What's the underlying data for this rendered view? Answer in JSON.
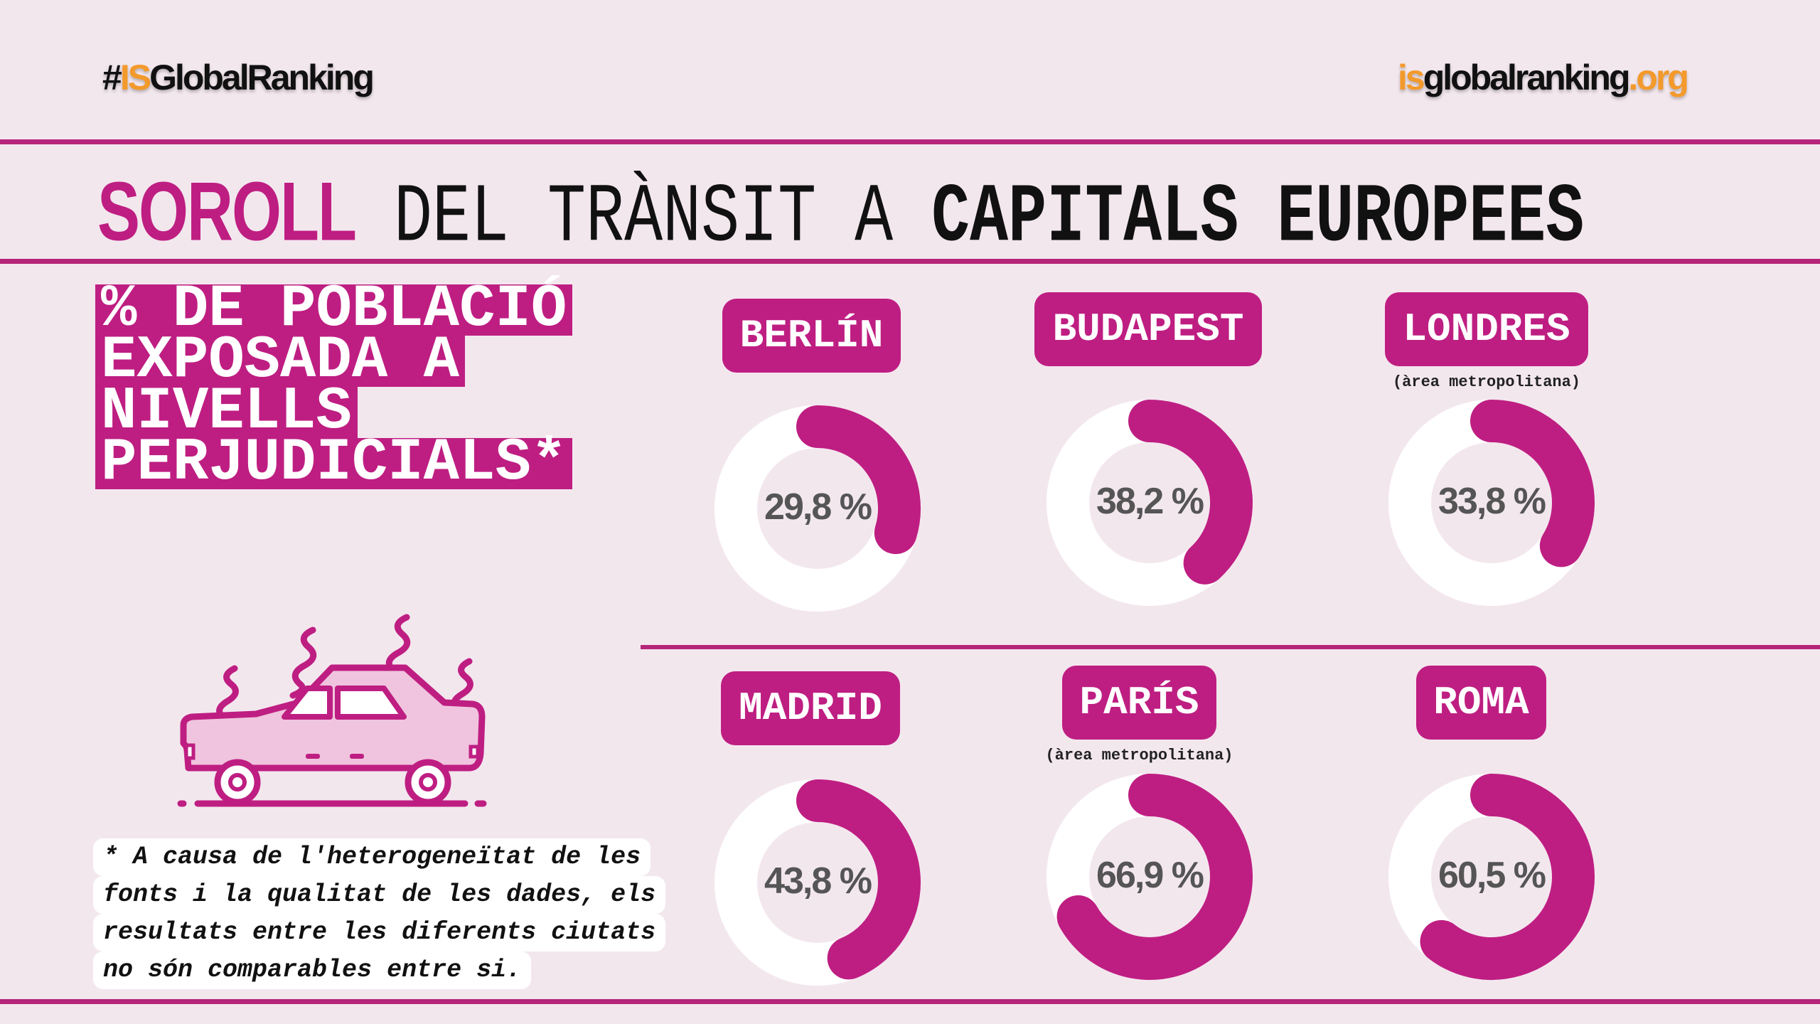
{
  "header": {
    "hashtag_prefix": "#",
    "hashtag_accent": "IS",
    "hashtag_rest": "GlobalRanking",
    "site_accent": "is",
    "site_main": "globalranking",
    "site_suffix": ".org"
  },
  "title": {
    "part1": "SOROLL",
    "part2": "DEL TRÀNSIT A",
    "part3": "CAPITALS EUROPEES"
  },
  "lead_lines": [
    "% DE POBLACIÓ",
    "EXPOSADA A",
    "NIVELLS",
    "PERJUDICIALS*"
  ],
  "footnote_lines": [
    "* A causa de l'heterogeneïtat de les",
    "fonts i la qualitat de les dades, els",
    "resultats entre les diferents ciutats",
    "no són comparables entre si."
  ],
  "colors": {
    "accent": "#BE1E82",
    "background": "#F3E7EE",
    "ring": "#FFFFFF",
    "value_text": "#555555",
    "brand_orange": "#F39A2B"
  },
  "chart_data": {
    "type": "donut",
    "title": "% de població exposada a nivells perjudicials",
    "unit": "%",
    "categories": [
      "BERLÍN",
      "BUDAPEST",
      "LONDRES",
      "MADRID",
      "PARÍS",
      "ROMA"
    ],
    "values": [
      29.8,
      38.2,
      33.8,
      43.8,
      66.9,
      60.5
    ],
    "value_labels": [
      "29,8 %",
      "38,2 %",
      "33,8 %",
      "43,8 %",
      "66,9 %",
      "60,5 %"
    ],
    "notes": [
      "",
      "",
      "(àrea metropolitana)",
      "",
      "(àrea metropolitana)",
      ""
    ],
    "max": 100
  }
}
